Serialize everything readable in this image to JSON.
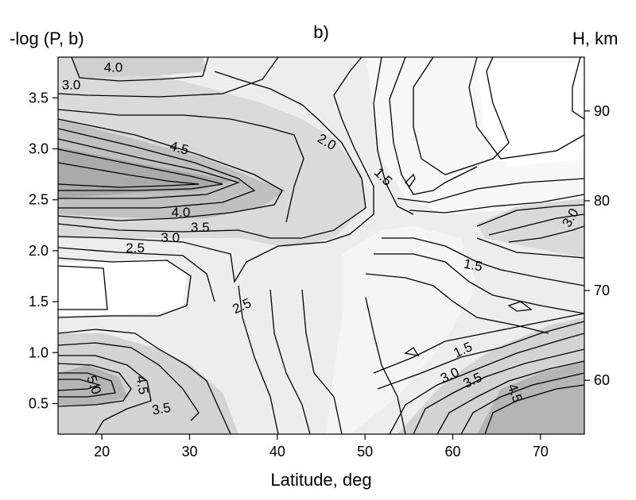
{
  "chart_data": {
    "type": "contour",
    "title": "b)",
    "xlabel": "Latitude, deg",
    "ylabel": "-log (P, b)",
    "y2label": "H, km",
    "xlim": [
      15,
      75
    ],
    "ylim": [
      0.2,
      3.9
    ],
    "y2lim": [
      54,
      96
    ],
    "x_ticks": [
      20,
      30,
      40,
      50,
      60,
      70
    ],
    "y_ticks": [
      0.5,
      1.0,
      1.5,
      2.0,
      2.5,
      3.0,
      3.5
    ],
    "y2_ticks": [
      60,
      70,
      80,
      90
    ],
    "x_tick_labels": [
      "20",
      "30",
      "40",
      "50",
      "60",
      "70"
    ],
    "y_tick_labels": [
      "0.5",
      "1.0",
      "1.5",
      "2.0",
      "2.5",
      "3.0",
      "3.5"
    ],
    "y2_tick_labels": [
      "60",
      "70",
      "80",
      "90"
    ],
    "contour_interval": 0.5,
    "contour_labels": [
      {
        "text": "4.0",
        "x": 21.3,
        "y": 3.79,
        "rotate": 0
      },
      {
        "text": "3.0",
        "x": 16.5,
        "y": 3.62,
        "rotate": 0
      },
      {
        "text": "4.5",
        "x": 28.8,
        "y": 3.0,
        "rotate": 15
      },
      {
        "text": "2.0",
        "x": 45.6,
        "y": 3.06,
        "rotate": 30
      },
      {
        "text": "1.5",
        "x": 52.0,
        "y": 2.72,
        "rotate": 45
      },
      {
        "text": "3.0",
        "x": 73.5,
        "y": 2.32,
        "rotate": -60
      },
      {
        "text": "4.0",
        "x": 29.0,
        "y": 2.37,
        "rotate": 0
      },
      {
        "text": "3.5",
        "x": 31.2,
        "y": 2.22,
        "rotate": 0
      },
      {
        "text": "3.0",
        "x": 27.8,
        "y": 2.12,
        "rotate": 0
      },
      {
        "text": "2.5",
        "x": 23.8,
        "y": 2.02,
        "rotate": 0
      },
      {
        "text": "1.5",
        "x": 62.3,
        "y": 1.85,
        "rotate": 10
      },
      {
        "text": "2.5",
        "x": 36.0,
        "y": 1.45,
        "rotate": -25
      },
      {
        "text": "1.5",
        "x": 61.2,
        "y": 1.02,
        "rotate": -25
      },
      {
        "text": "3.0",
        "x": 59.7,
        "y": 0.77,
        "rotate": -25
      },
      {
        "text": "3.5",
        "x": 62.3,
        "y": 0.72,
        "rotate": -25
      },
      {
        "text": "4.5",
        "x": 24.5,
        "y": 0.68,
        "rotate": 80
      },
      {
        "text": "5.0",
        "x": 19.0,
        "y": 0.68,
        "rotate": 70
      },
      {
        "text": "3.5",
        "x": 26.8,
        "y": 0.44,
        "rotate": -10
      },
      {
        "text": "4.5",
        "x": 67.0,
        "y": 0.6,
        "rotate": 70
      }
    ]
  }
}
